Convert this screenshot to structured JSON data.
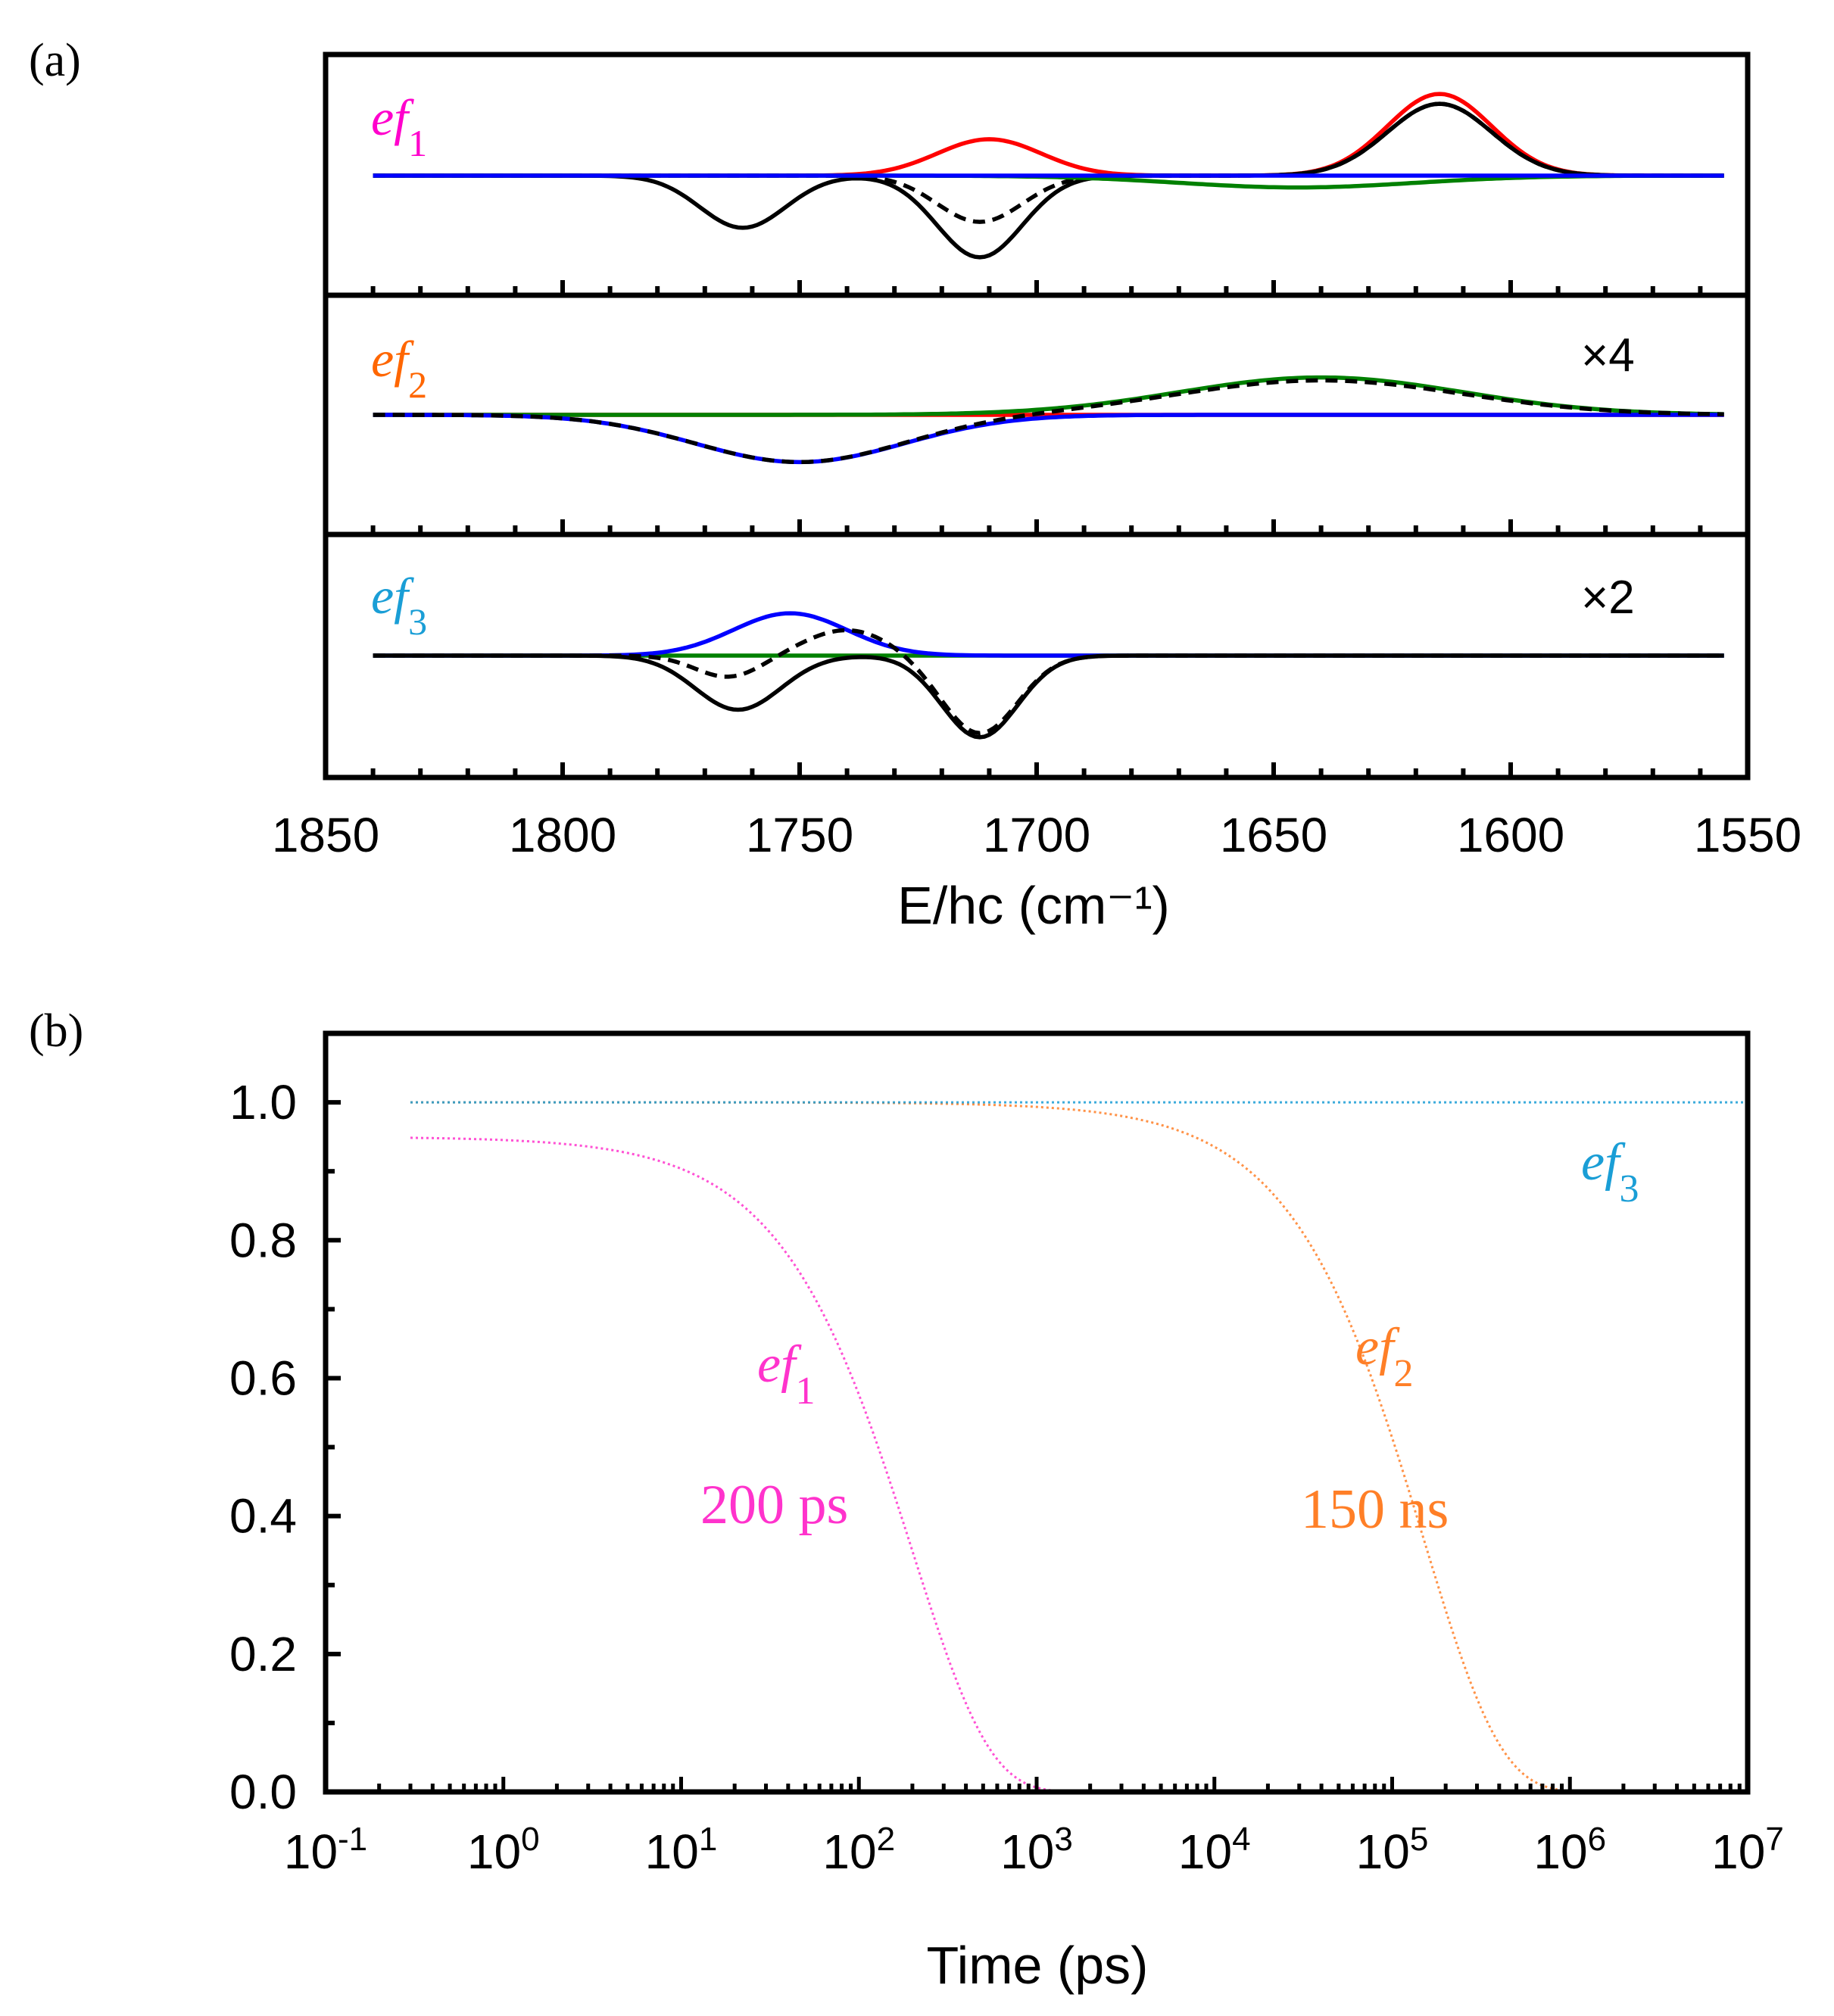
{
  "chart_data": [
    {
      "panel": "(a)",
      "type": "line",
      "xlabel": "E/hc (cm⁻¹)",
      "xlim": [
        1850,
        1550
      ],
      "x_ticks": [
        1850,
        1800,
        1750,
        1700,
        1650,
        1600,
        1550
      ],
      "x_tick_labels": [
        "1850",
        "1800",
        "1750",
        "1700",
        "1650",
        "1600",
        "1550"
      ],
      "subpanels": [
        {
          "label": {
            "prefix": "ef",
            "sub": "1",
            "color": "#ff00cc"
          },
          "multiplier": "",
          "curves": [
            {
              "color": "#ff0000",
              "style": "solid",
              "peaks": [
                [
                  1710,
                  0.37,
                  11
                ],
                [
                  1615,
                  0.83,
                  11
                ]
              ]
            },
            {
              "color": "#000000",
              "style": "dashed",
              "peaks": [
                [
                  1712,
                  -0.47,
                  9
                ],
                [
                  1615,
                  0.73,
                  11
                ]
              ]
            },
            {
              "color": "#000000",
              "style": "solid",
              "peaks": [
                [
                  1762,
                  -0.53,
                  9
                ],
                [
                  1712,
                  -0.83,
                  9
                ],
                [
                  1615,
                  0.73,
                  11
                ]
              ]
            },
            {
              "color": "#008000",
              "style": "solid",
              "peaks": [
                [
                  1645,
                  -0.12,
                  25
                ]
              ]
            },
            {
              "color": "#0000ff",
              "style": "solid",
              "peaks": []
            }
          ]
        },
        {
          "label": {
            "prefix": "ef",
            "sub": "2",
            "color": "#ff6600"
          },
          "multiplier": "×4",
          "curves": [
            {
              "color": "#ff0000",
              "style": "solid",
              "peaks": []
            },
            {
              "color": "#008000",
              "style": "solid",
              "peaks": [
                [
                  1640,
                  0.38,
                  30
                ]
              ]
            },
            {
              "color": "#0000ff",
              "style": "solid",
              "peaks": [
                [
                  1750,
                  -0.48,
                  22
                ]
              ]
            },
            {
              "color": "#000000",
              "style": "dashed",
              "peaks": [
                [
                  1750,
                  -0.48,
                  22
                ],
                [
                  1640,
                  0.35,
                  30
                ]
              ]
            }
          ]
        },
        {
          "label": {
            "prefix": "ef",
            "sub": "3",
            "color": "#1a9ed6"
          },
          "multiplier": "×2",
          "curves": [
            {
              "color": "#008000",
              "style": "solid",
              "peaks": []
            },
            {
              "color": "#0000ff",
              "style": "solid",
              "peaks": [
                [
                  1752,
                  0.43,
                  12
                ]
              ]
            },
            {
              "color": "#000000",
              "style": "dashed",
              "peaks": [
                [
                  1765,
                  -0.22,
                  7
                ],
                [
                  1740,
                  0.26,
                  9
                ],
                [
                  1712,
                  -0.79,
                  8
                ]
              ]
            },
            {
              "color": "#000000",
              "style": "solid",
              "peaks": [
                [
                  1763,
                  -0.55,
                  9
                ],
                [
                  1712,
                  -0.83,
                  8
                ]
              ]
            }
          ]
        }
      ]
    },
    {
      "panel": "(b)",
      "type": "line",
      "xlabel": "Time (ps)",
      "x_scale": "log",
      "xlim": [
        0.1,
        10000000
      ],
      "ylim": [
        0,
        1.1
      ],
      "x_tick_labels": [
        {
          "base": "10",
          "exp": "-1"
        },
        {
          "base": "10",
          "exp": "0"
        },
        {
          "base": "10",
          "exp": "1"
        },
        {
          "base": "10",
          "exp": "2"
        },
        {
          "base": "10",
          "exp": "3"
        },
        {
          "base": "10",
          "exp": "4"
        },
        {
          "base": "10",
          "exp": "5"
        },
        {
          "base": "10",
          "exp": "6"
        },
        {
          "base": "10",
          "exp": "7"
        }
      ],
      "y_ticks": [
        "0.0",
        "0.2",
        "0.4",
        "0.6",
        "0.8",
        "1.0"
      ],
      "series": [
        {
          "label_prefix": "ef",
          "label_sub": "1",
          "lifetime_text": "200 ps",
          "color": "#ff33cc",
          "amplitude": 0.95,
          "tau_ps": 200,
          "x_start": 0.3
        },
        {
          "label_prefix": "ef",
          "label_sub": "2",
          "lifetime_text": "150 ns",
          "color": "#ff7f27",
          "amplitude": 1.0,
          "tau_ps": 150000,
          "x_start": 0.3
        },
        {
          "label_prefix": "ef",
          "label_sub": "3",
          "lifetime_text": "",
          "color": "#1a9ed6",
          "amplitude": 1.0,
          "tau_ps": 1000000000000.0,
          "x_start": 0.3
        }
      ]
    }
  ]
}
